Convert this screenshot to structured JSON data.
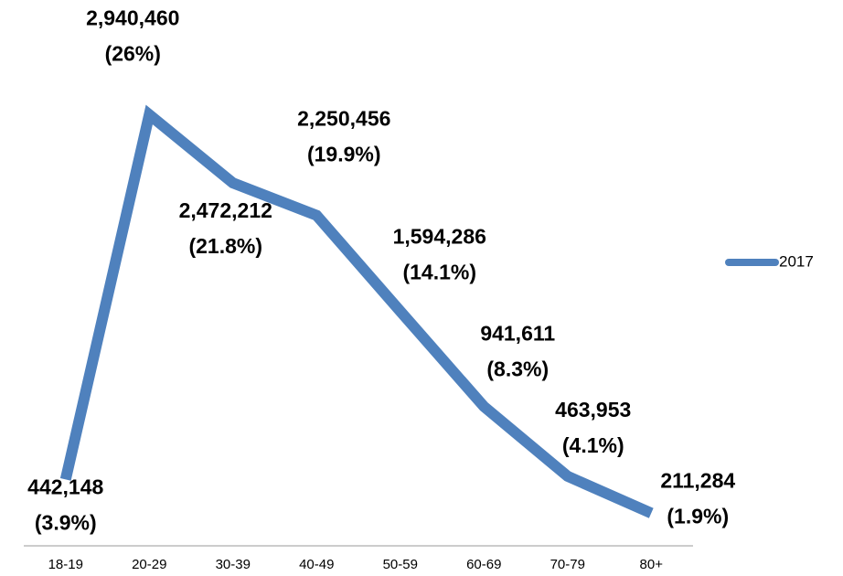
{
  "chart_data": {
    "type": "line",
    "categories": [
      "18-19",
      "20-29",
      "30-39",
      "40-49",
      "50-59",
      "60-69",
      "70-79",
      "80+"
    ],
    "series": [
      {
        "name": "2017",
        "color": "#4f81bd",
        "values": [
          442148,
          2940460,
          2472212,
          2250456,
          1594286,
          941611,
          463953,
          211284
        ],
        "value_labels": [
          "442,148",
          "2,940,460",
          "2,472,212",
          "2,250,456",
          "1,594,286",
          "941,611",
          "463,953",
          "211,284"
        ]
      }
    ],
    "shares": {
      "values": [
        3.9,
        26,
        21.8,
        19.9,
        14.1,
        8.3,
        4.1,
        1.9
      ],
      "value_labels": [
        "(3.9%)",
        "(26%)",
        "(21.8%)",
        "(19.9%)",
        "(14.1%)",
        "(8.3%)",
        "(4.1%)",
        "(1.9%)"
      ]
    },
    "ylim": [
      0,
      3500000
    ],
    "legend": "right"
  }
}
